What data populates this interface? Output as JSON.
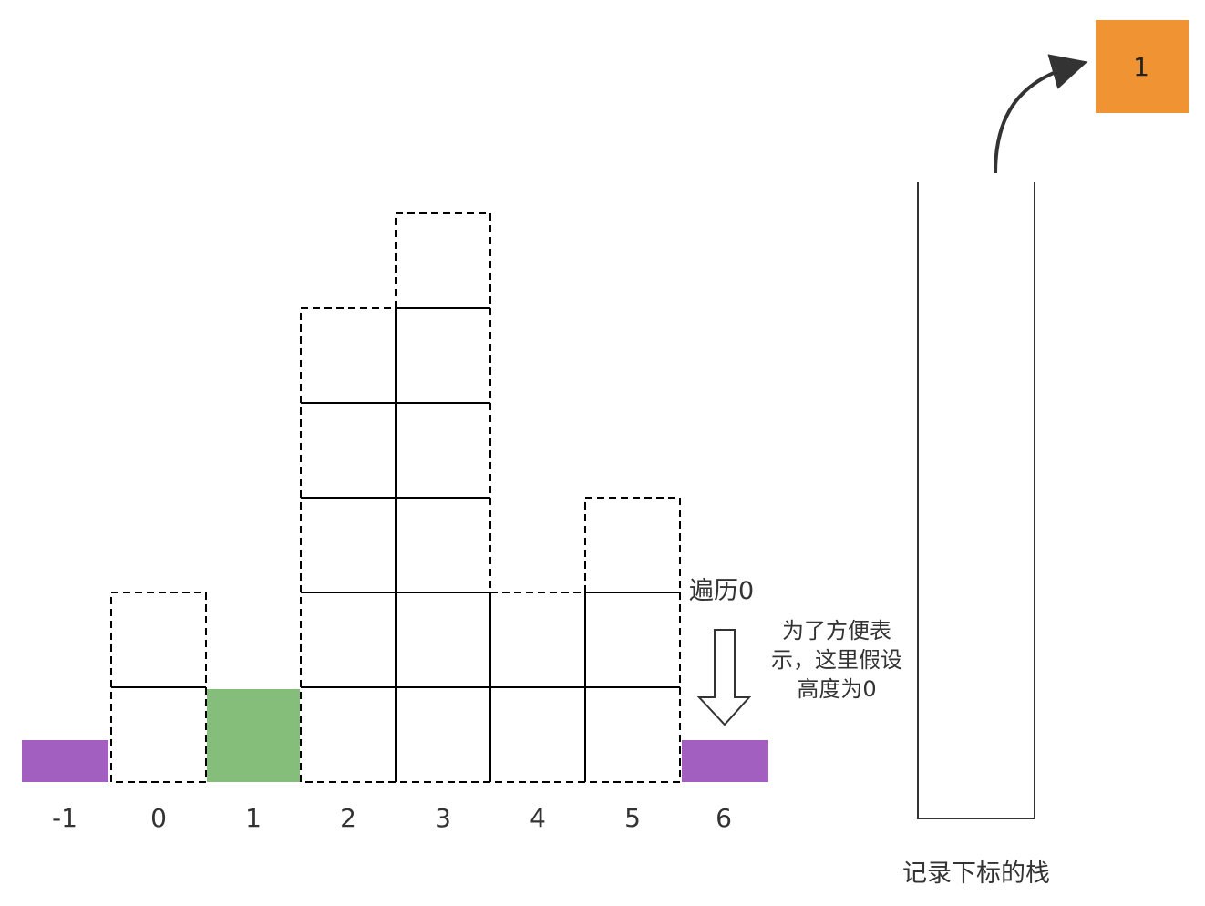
{
  "indices": [
    "-1",
    "0",
    "1",
    "2",
    "3",
    "4",
    "5",
    "6"
  ],
  "heights": [
    0,
    2,
    1,
    5,
    6,
    2,
    3,
    0
  ],
  "sentinel_color": "#a35fc0",
  "current_color": "#85bd7a",
  "stack_top_color": "#f09433",
  "current_index": 1,
  "traverse_label": "遍历0",
  "note_lines": [
    "为了方便表",
    "示，这里假设",
    "高度为0"
  ],
  "stack_caption": "记录下标的栈",
  "popped_value": "1",
  "icons": {
    "down_arrow": "hollow-down-arrow-icon",
    "pop_arrow": "curved-arrow-icon"
  }
}
